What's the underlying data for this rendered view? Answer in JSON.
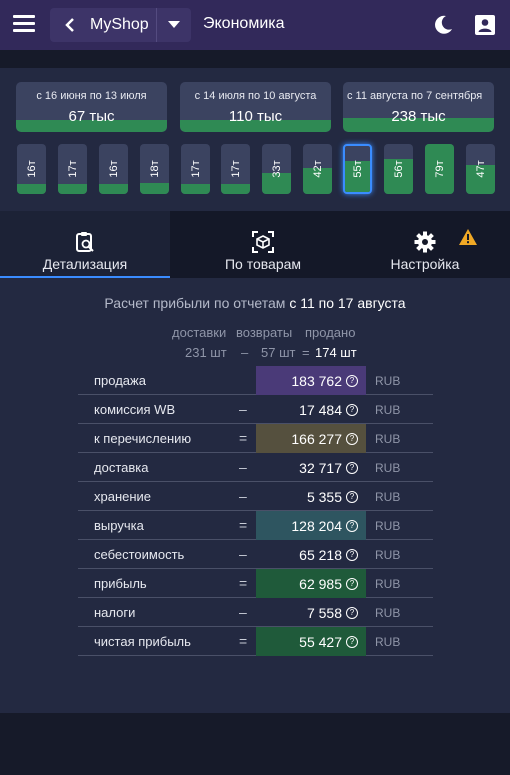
{
  "header": {
    "shop_name": "MyShop",
    "page_title": "Экономика"
  },
  "periods": [
    {
      "dates": "с 16 июня по 13 июля",
      "amount": "67 тыс",
      "fill_fraction": 0.28,
      "color": "#2f8a54"
    },
    {
      "dates": "с 14 июля по 10 августа",
      "amount": "110 тыс",
      "fill_fraction": 0.46,
      "color": "#2f8a54"
    },
    {
      "dates": "с 11 августа по 7 сентября",
      "amount": "238 тыс",
      "fill_fraction": 1.0,
      "color": "#2f8a54"
    }
  ],
  "weeks": [
    {
      "label": "16т",
      "fill_fraction": 0.2
    },
    {
      "label": "17т",
      "fill_fraction": 0.2
    },
    {
      "label": "16т",
      "fill_fraction": 0.2
    },
    {
      "label": "18т",
      "fill_fraction": 0.22
    },
    {
      "label": "17т",
      "fill_fraction": 0.2
    },
    {
      "label": "17т",
      "fill_fraction": 0.2
    },
    {
      "label": "33т",
      "fill_fraction": 0.42
    },
    {
      "label": "42т",
      "fill_fraction": 0.53
    },
    {
      "label": "55т",
      "fill_fraction": 0.68,
      "selected": true
    },
    {
      "label": "56т",
      "fill_fraction": 0.7
    },
    {
      "label": "79т",
      "fill_fraction": 1.0
    },
    {
      "label": "47т",
      "fill_fraction": 0.59
    }
  ],
  "tabs": [
    {
      "label": "Детализация",
      "icon": "clipboard-search-icon",
      "active": true
    },
    {
      "label": "По товарам",
      "icon": "cube-scan-icon",
      "active": false
    },
    {
      "label": "Настройка",
      "icon": "gear-icon",
      "active": false
    }
  ],
  "calc": {
    "title_prefix": "Расчет прибыли по отчетам",
    "title_range": "с 11 по 17 августа",
    "summary": {
      "deliveries_label": "доставки",
      "returns_label": "возвраты",
      "sold_label": "продано",
      "deliveries_value": "231 шт",
      "minus_sign": "–",
      "returns_value": "57 шт",
      "equals_sign": "=",
      "sold_value": "174 шт"
    },
    "currency": "RUB",
    "rows": [
      {
        "label": "продажа",
        "op": "",
        "value": "183 762",
        "highlight": "#4a3a78"
      },
      {
        "label": "комиссия WB",
        "op": "–",
        "value": "17 484",
        "highlight": ""
      },
      {
        "label": "к перечислению",
        "op": "=",
        "value": "166 277",
        "highlight": "#55503e"
      },
      {
        "label": "доставка",
        "op": "–",
        "value": "32 717",
        "highlight": ""
      },
      {
        "label": "хранение",
        "op": "–",
        "value": "5 355",
        "highlight": ""
      },
      {
        "label": "выручка",
        "op": "=",
        "value": "128 204",
        "highlight": "#2e5560"
      },
      {
        "label": "себестоимость",
        "op": "–",
        "value": "65 218",
        "highlight": ""
      },
      {
        "label": "прибыль",
        "op": "=",
        "value": "62 985",
        "highlight": "#1f5a3a"
      },
      {
        "label": "налоги",
        "op": "–",
        "value": "7 558",
        "highlight": ""
      },
      {
        "label": "чистая прибыль",
        "op": "=",
        "value": "55 427",
        "highlight": "#1f5a3a"
      }
    ]
  }
}
